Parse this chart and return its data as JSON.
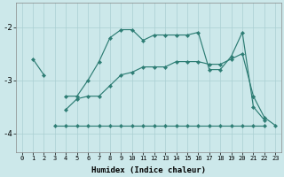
{
  "bg_color": "#cce8ea",
  "grid_color": "#aacfd2",
  "line_color": "#2d7d74",
  "xlabel": "Humidex (Indice chaleur)",
  "xlim": [
    -0.5,
    23.5
  ],
  "ylim": [
    -4.35,
    -1.55
  ],
  "yticks": [
    -4,
    -3,
    -2
  ],
  "xticks": [
    0,
    1,
    2,
    3,
    4,
    5,
    6,
    7,
    8,
    9,
    10,
    11,
    12,
    13,
    14,
    15,
    16,
    17,
    18,
    19,
    20,
    21,
    22,
    23
  ],
  "series": [
    {
      "x": [
        1,
        2
      ],
      "y": [
        -2.6,
        -2.9
      ]
    },
    {
      "x": [
        4,
        5,
        6,
        7,
        8,
        9,
        10,
        11,
        12,
        13,
        14,
        15,
        16,
        17,
        18,
        19,
        20,
        21,
        22
      ],
      "y": [
        -3.3,
        -3.3,
        -3.0,
        -2.65,
        -2.2,
        -2.05,
        -2.05,
        -2.25,
        -2.15,
        -2.15,
        -2.15,
        -2.15,
        -2.1,
        -2.8,
        -2.8,
        -2.55,
        -2.1,
        -3.5,
        -3.75
      ]
    },
    {
      "x": [
        4,
        5,
        6,
        7,
        8,
        9,
        10,
        11,
        12,
        13,
        14,
        15,
        16,
        17,
        18,
        19,
        20,
        21
      ],
      "y": [
        -3.55,
        -3.35,
        -3.3,
        -3.3,
        -3.1,
        -2.9,
        -2.85,
        -2.75,
        -2.75,
        -2.75,
        -2.65,
        -2.65,
        -2.65,
        -2.7,
        -2.7,
        -2.6,
        -2.5,
        -3.3
      ]
    },
    {
      "x": [
        21,
        22,
        23
      ],
      "y": [
        -3.3,
        -3.7,
        -3.85
      ]
    },
    {
      "x": [
        3,
        4,
        5,
        6,
        7,
        8,
        9,
        10,
        11,
        12,
        13,
        14,
        15,
        16,
        17,
        18,
        19,
        20,
        21,
        22
      ],
      "y": [
        -3.85,
        -3.85,
        -3.85,
        -3.85,
        -3.85,
        -3.85,
        -3.85,
        -3.85,
        -3.85,
        -3.85,
        -3.85,
        -3.85,
        -3.85,
        -3.85,
        -3.85,
        -3.85,
        -3.85,
        -3.85,
        -3.85,
        -3.85
      ]
    }
  ]
}
